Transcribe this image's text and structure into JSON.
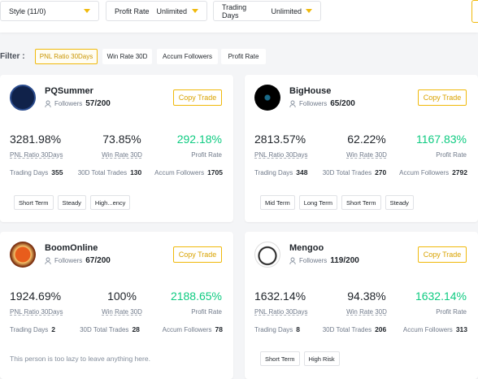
{
  "toolbar": {
    "dropdowns": [
      {
        "label": "Style (11/0)"
      },
      {
        "label": "Profit Rate",
        "value": "Unlimited"
      },
      {
        "label": "Trading Days",
        "value": "Unlimited"
      }
    ]
  },
  "filter_bar": {
    "label": "Filter :",
    "options": [
      "PNL Ratio 30Days",
      "Win Rate 30D",
      "Accum Followers",
      "Profit Rate"
    ]
  },
  "cards": [
    {
      "name": "PQSummer",
      "followers_label": "Followers",
      "followers": "57/200",
      "button": "Copy Trade",
      "stats": [
        {
          "value": "3281.98%",
          "label": "PNL Ratio 30Days"
        },
        {
          "value": "73.85%",
          "label": "Win Rate 30D"
        },
        {
          "value": "292.18%",
          "label": "Profit Rate"
        }
      ],
      "details": [
        {
          "label": "Trading Days",
          "value": 355
        },
        {
          "label": "30D Total Trades",
          "value": 130
        },
        {
          "label": "Accum Followers",
          "value": 1705
        }
      ],
      "tags": [
        "Short Term",
        "Steady",
        "High...ency"
      ]
    },
    {
      "name": "BigHouse",
      "followers_label": "Followers",
      "followers": "65/200",
      "button": "Copy Trade",
      "stats": [
        {
          "value": "2813.57%",
          "label": "PNL Ratio 30Days"
        },
        {
          "value": "62.22%",
          "label": "Win Rate 30D"
        },
        {
          "value": "1167.83%",
          "label": "Profit Rate"
        }
      ],
      "details": [
        {
          "label": "Trading Days",
          "value": 348
        },
        {
          "label": "30D Total Trades",
          "value": 270
        },
        {
          "label": "Accum Followers",
          "value": 2792
        }
      ],
      "tags": [
        "Mid Term",
        "Long Term",
        "Short Term",
        "Steady"
      ]
    },
    {
      "name": "BoomOnline",
      "followers_label": "Followers",
      "followers": "67/200",
      "button": "Copy Trade",
      "stats": [
        {
          "value": "1924.69%",
          "label": "PNL Ratio 30Days"
        },
        {
          "value": "100%",
          "label": "Win Rate 30D"
        },
        {
          "value": "2188.65%",
          "label": "Profit Rate"
        }
      ],
      "details": [
        {
          "label": "Trading Days",
          "value": 2
        },
        {
          "label": "30D Total Trades",
          "value": 28
        },
        {
          "label": "Accum Followers",
          "value": 78
        }
      ],
      "note": "This person is too lazy to leave anything here."
    },
    {
      "name": "Mengoo",
      "followers_label": "Followers",
      "followers": "119/200",
      "button": "Copy Trade",
      "stats": [
        {
          "value": "1632.14%",
          "label": "PNL Ratio 30Days"
        },
        {
          "value": "94.38%",
          "label": "Win Rate 30D"
        },
        {
          "value": "1632.14%",
          "label": "Profit Rate"
        }
      ],
      "details": [
        {
          "label": "Trading Days",
          "value": 8
        },
        {
          "label": "30D Total Trades",
          "value": 206
        },
        {
          "label": "Accum Followers",
          "value": 313
        }
      ],
      "tags": [
        "Short Term",
        "High Risk"
      ]
    }
  ]
}
